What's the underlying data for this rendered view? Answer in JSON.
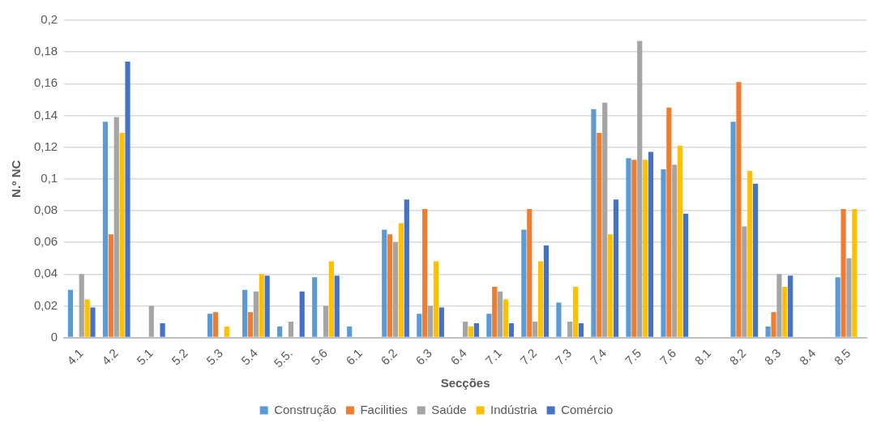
{
  "chart_data": {
    "type": "bar",
    "xlabel": "Secções",
    "ylabel": "N.º NC",
    "categories": [
      "4.1",
      "4.2",
      "5.1",
      "5.2",
      "5.3",
      "5.4",
      "5.5.",
      "5.6",
      "6.1",
      "6.2",
      "6.3",
      "6.4",
      "7.1",
      "7.2",
      "7.3",
      "7.4",
      "7.5",
      "7.6",
      "8.1",
      "8.2",
      "8.3",
      "8.4",
      "8.5"
    ],
    "series": [
      {
        "name": "Construção",
        "color": "#5b9bd5",
        "values": [
          0.03,
          0.136,
          0,
          0,
          0.015,
          0.03,
          0.007,
          0.038,
          0.007,
          0.068,
          0.015,
          0,
          0.015,
          0.068,
          0.022,
          0.144,
          0.113,
          0.106,
          0,
          0.136,
          0.007,
          0,
          0.038
        ]
      },
      {
        "name": "Facilities",
        "color": "#ed7d31",
        "values": [
          0,
          0.065,
          0,
          0,
          0.016,
          0.016,
          0,
          0,
          0,
          0.065,
          0.081,
          0,
          0.032,
          0.081,
          0,
          0.129,
          0.112,
          0.145,
          0,
          0.161,
          0.016,
          0,
          0.081
        ]
      },
      {
        "name": "Saúde",
        "color": "#a5a5a5",
        "values": [
          0.04,
          0.139,
          0.02,
          0,
          0,
          0.029,
          0.01,
          0.02,
          0,
          0.06,
          0.02,
          0.01,
          0.029,
          0.01,
          0.01,
          0.148,
          0.187,
          0.109,
          0,
          0.07,
          0.04,
          0,
          0.05
        ]
      },
      {
        "name": "Indústria",
        "color": "#ffc000",
        "values": [
          0.024,
          0.129,
          0,
          0,
          0.007,
          0.04,
          0,
          0.048,
          0,
          0.072,
          0.048,
          0.007,
          0.024,
          0.048,
          0.032,
          0.065,
          0.112,
          0.121,
          0,
          0.105,
          0.032,
          0,
          0.081
        ]
      },
      {
        "name": "Comércio",
        "color": "#4472c4",
        "values": [
          0.019,
          0.174,
          0.009,
          0,
          0,
          0.039,
          0.029,
          0.039,
          0,
          0.087,
          0.019,
          0.009,
          0.009,
          0.058,
          0.009,
          0.087,
          0.117,
          0.078,
          0,
          0.097,
          0.039,
          0,
          0
        ]
      }
    ],
    "ylim": [
      0,
      0.2
    ],
    "yticks": [
      {
        "value": 0,
        "label": "0"
      },
      {
        "value": 0.02,
        "label": "0,02"
      },
      {
        "value": 0.04,
        "label": "0,04"
      },
      {
        "value": 0.06,
        "label": "0,06"
      },
      {
        "value": 0.08,
        "label": "0,08"
      },
      {
        "value": 0.1,
        "label": "0,1"
      },
      {
        "value": 0.12,
        "label": "0,12"
      },
      {
        "value": 0.14,
        "label": "0,14"
      },
      {
        "value": 0.16,
        "label": "0,16"
      },
      {
        "value": 0.18,
        "label": "0,18"
      },
      {
        "value": 0.2,
        "label": "0,2"
      }
    ],
    "grid": "y",
    "legend": "bottom"
  }
}
